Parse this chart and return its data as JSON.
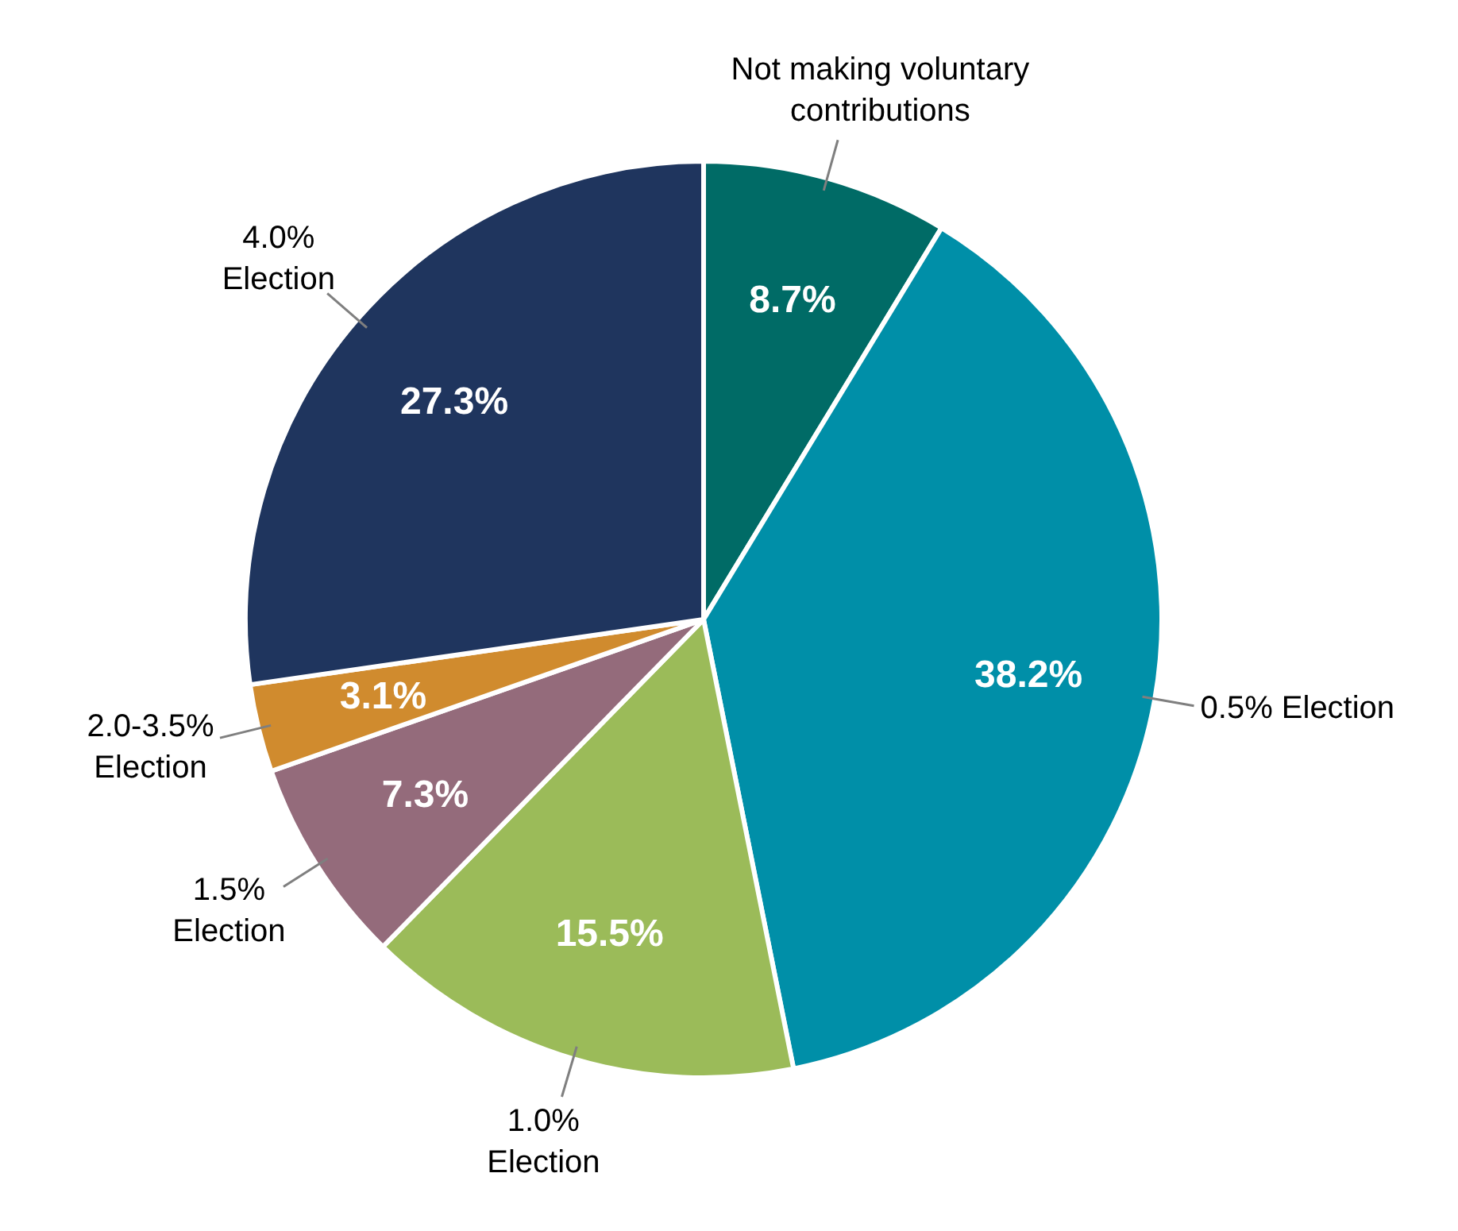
{
  "chart_data": {
    "type": "pie",
    "categories": [
      "Not making voluntary contributions",
      "0.5% Election",
      "1.0% Election",
      "1.5% Election",
      "2.0-3.5% Election",
      "4.0% Election"
    ],
    "values": [
      8.7,
      38.2,
      15.5,
      7.3,
      3.1,
      27.3
    ],
    "value_labels": [
      "8.7%",
      "38.2%",
      "15.5%",
      "7.3%",
      "3.1%",
      "27.3%"
    ],
    "colors": [
      "#006b66",
      "#008fa8",
      "#9bbb59",
      "#946b7b",
      "#d08b2e",
      "#1f355e"
    ],
    "legend": false
  }
}
